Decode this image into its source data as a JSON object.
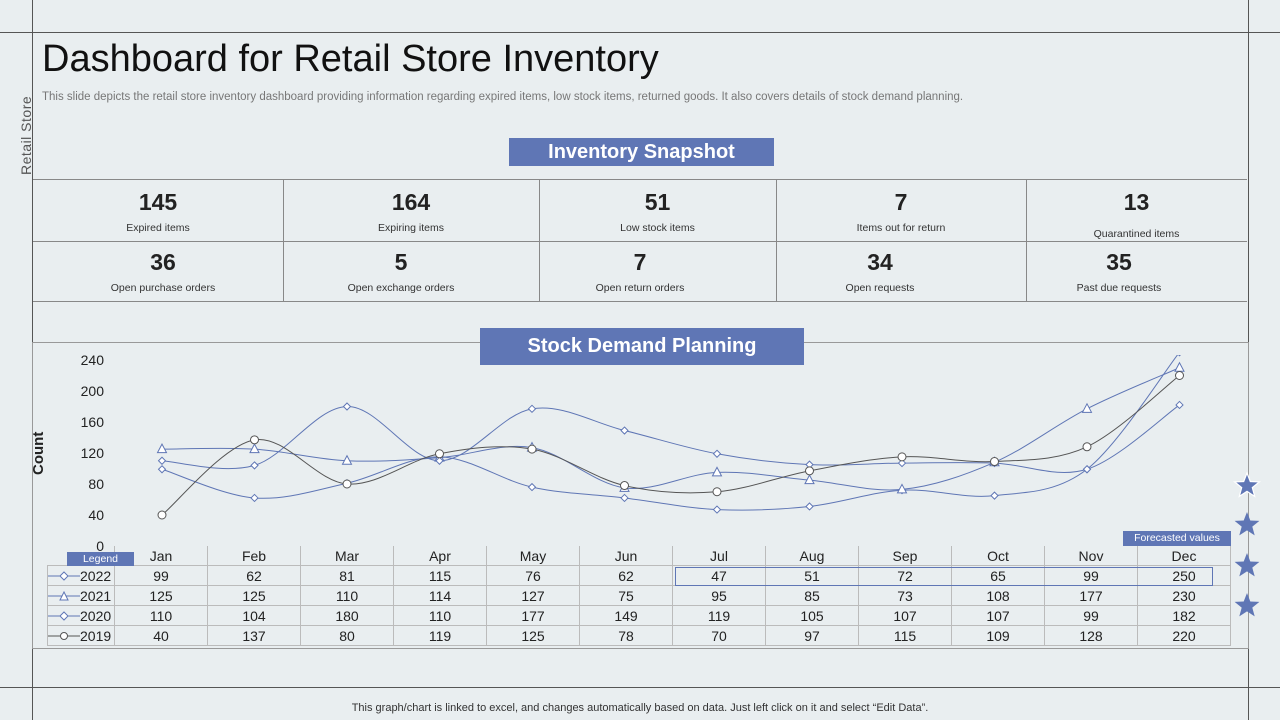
{
  "side_label": "Retail Store",
  "title": "Dashboard for Retail Store Inventory",
  "subtitle": "This slide depicts the retail store inventory dashboard providing information regarding expired items, low stock items, returned goods. It also covers details of stock demand planning.",
  "snapshot_heading": "Inventory Snapshot",
  "kpis": [
    {
      "value": "145",
      "label": "Expired items"
    },
    {
      "value": "164",
      "label": "Expiring items"
    },
    {
      "value": "51",
      "label": "Low stock items"
    },
    {
      "value": "7",
      "label": "Items out for return"
    },
    {
      "value": "13",
      "label": "Quarantined items"
    },
    {
      "value": "36",
      "label": "Open purchase orders"
    },
    {
      "value": "5",
      "label": "Open exchange orders"
    },
    {
      "value": "7",
      "label": "Open return orders"
    },
    {
      "value": "34",
      "label": "Open requests"
    },
    {
      "value": "35",
      "label": "Past due requests"
    }
  ],
  "planning_heading": "Stock Demand Planning",
  "legend_label": "Legend",
  "forecast_label": "Forecasted values",
  "footer": "This graph/chart is linked to excel,  and changes automatically based on data. Just left click on it and select “Edit Data”.",
  "colors": {
    "accent": "#5f76b5",
    "line_blue": "#5f76b5",
    "line_dark": "#555555"
  },
  "chart_data": {
    "type": "line",
    "title": "Stock Demand Planning",
    "ylabel": "Count",
    "xlabel": "",
    "ylim": [
      0,
      240
    ],
    "yticks": [
      "240",
      "200",
      "160",
      "120",
      "80",
      "40",
      "0"
    ],
    "categories": [
      "Jan",
      "Feb",
      "Mar",
      "Apr",
      "May",
      "Jun",
      "Jul",
      "Aug",
      "Sep",
      "Oct",
      "Nov",
      "Dec"
    ],
    "series": [
      {
        "name": "2022",
        "marker": "diamond",
        "values": [
          99,
          62,
          81,
          115,
          76,
          62,
          47,
          51,
          72,
          65,
          99,
          250
        ]
      },
      {
        "name": "2021",
        "marker": "triangle",
        "values": [
          125,
          125,
          110,
          114,
          127,
          75,
          95,
          85,
          73,
          108,
          177,
          230
        ]
      },
      {
        "name": "2020",
        "marker": "diamond",
        "values": [
          110,
          104,
          180,
          110,
          177,
          149,
          119,
          105,
          107,
          107,
          99,
          182
        ]
      },
      {
        "name": "2019",
        "marker": "circle",
        "values": [
          40,
          137,
          80,
          119,
          125,
          78,
          70,
          97,
          115,
          109,
          128,
          220
        ]
      }
    ],
    "forecast_months": [
      "Jul",
      "Aug",
      "Sep",
      "Oct",
      "Nov",
      "Dec"
    ]
  }
}
